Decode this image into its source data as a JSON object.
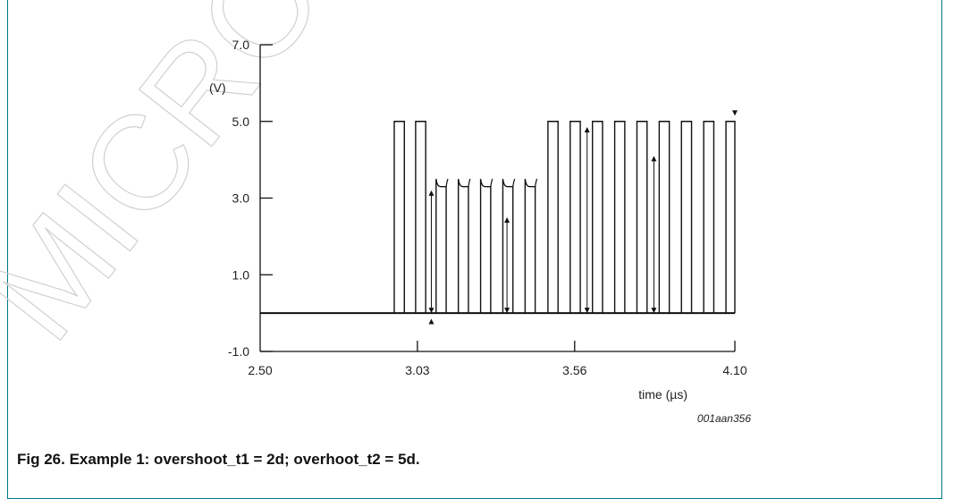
{
  "caption": "Fig 26. Example 1: overshoot_t1 = 2d; overhoot_t2 = 5d.",
  "watermark": "MICRO SE",
  "chart_data": {
    "type": "line",
    "xlabel": "time (µs)",
    "ylabel": "(V)",
    "figure_id": "001aan356",
    "xlim": [
      2.5,
      4.1
    ],
    "ylim": [
      -1.0,
      7.0
    ],
    "xticks": [
      "2.50",
      "3.03",
      "3.56",
      "4.10"
    ],
    "yticks": [
      "-1.0",
      "1.0",
      "3.0",
      "5.0",
      "7.0"
    ],
    "minor_xticks": [
      3.03,
      3.56,
      4.1
    ],
    "baseline": 0,
    "series": [
      {
        "pulses_full": [
          [
            2.952,
            2.986
          ],
          [
            3.024,
            3.058
          ],
          [
            3.47,
            3.504
          ],
          [
            3.545,
            3.579
          ],
          [
            3.62,
            3.654
          ],
          [
            3.695,
            3.729
          ],
          [
            3.77,
            3.804
          ],
          [
            3.845,
            3.879
          ],
          [
            3.92,
            3.954
          ],
          [
            3.995,
            4.029
          ],
          [
            4.07,
            4.1
          ]
        ],
        "pulses_overshoot": [
          [
            3.093,
            3.127
          ],
          [
            3.168,
            3.202
          ],
          [
            3.243,
            3.277
          ],
          [
            3.318,
            3.352
          ],
          [
            3.393,
            3.427
          ]
        ],
        "high_level": 5.0,
        "overshoot_level": 3.3,
        "overshoot_peak": 3.5
      }
    ],
    "markers": [
      {
        "x": 3.077,
        "y1": 0,
        "y2": 3.2
      },
      {
        "x": 3.332,
        "y1": 0,
        "y2": 2.5
      },
      {
        "x": 3.602,
        "y1": 0,
        "y2": 4.85
      },
      {
        "x": 3.827,
        "y1": 0,
        "y2": 4.1
      }
    ],
    "point_markers": [
      {
        "x": 3.077,
        "y": -0.15,
        "dir": "up"
      },
      {
        "x": 4.1,
        "y": 5.15,
        "dir": "down"
      }
    ]
  }
}
